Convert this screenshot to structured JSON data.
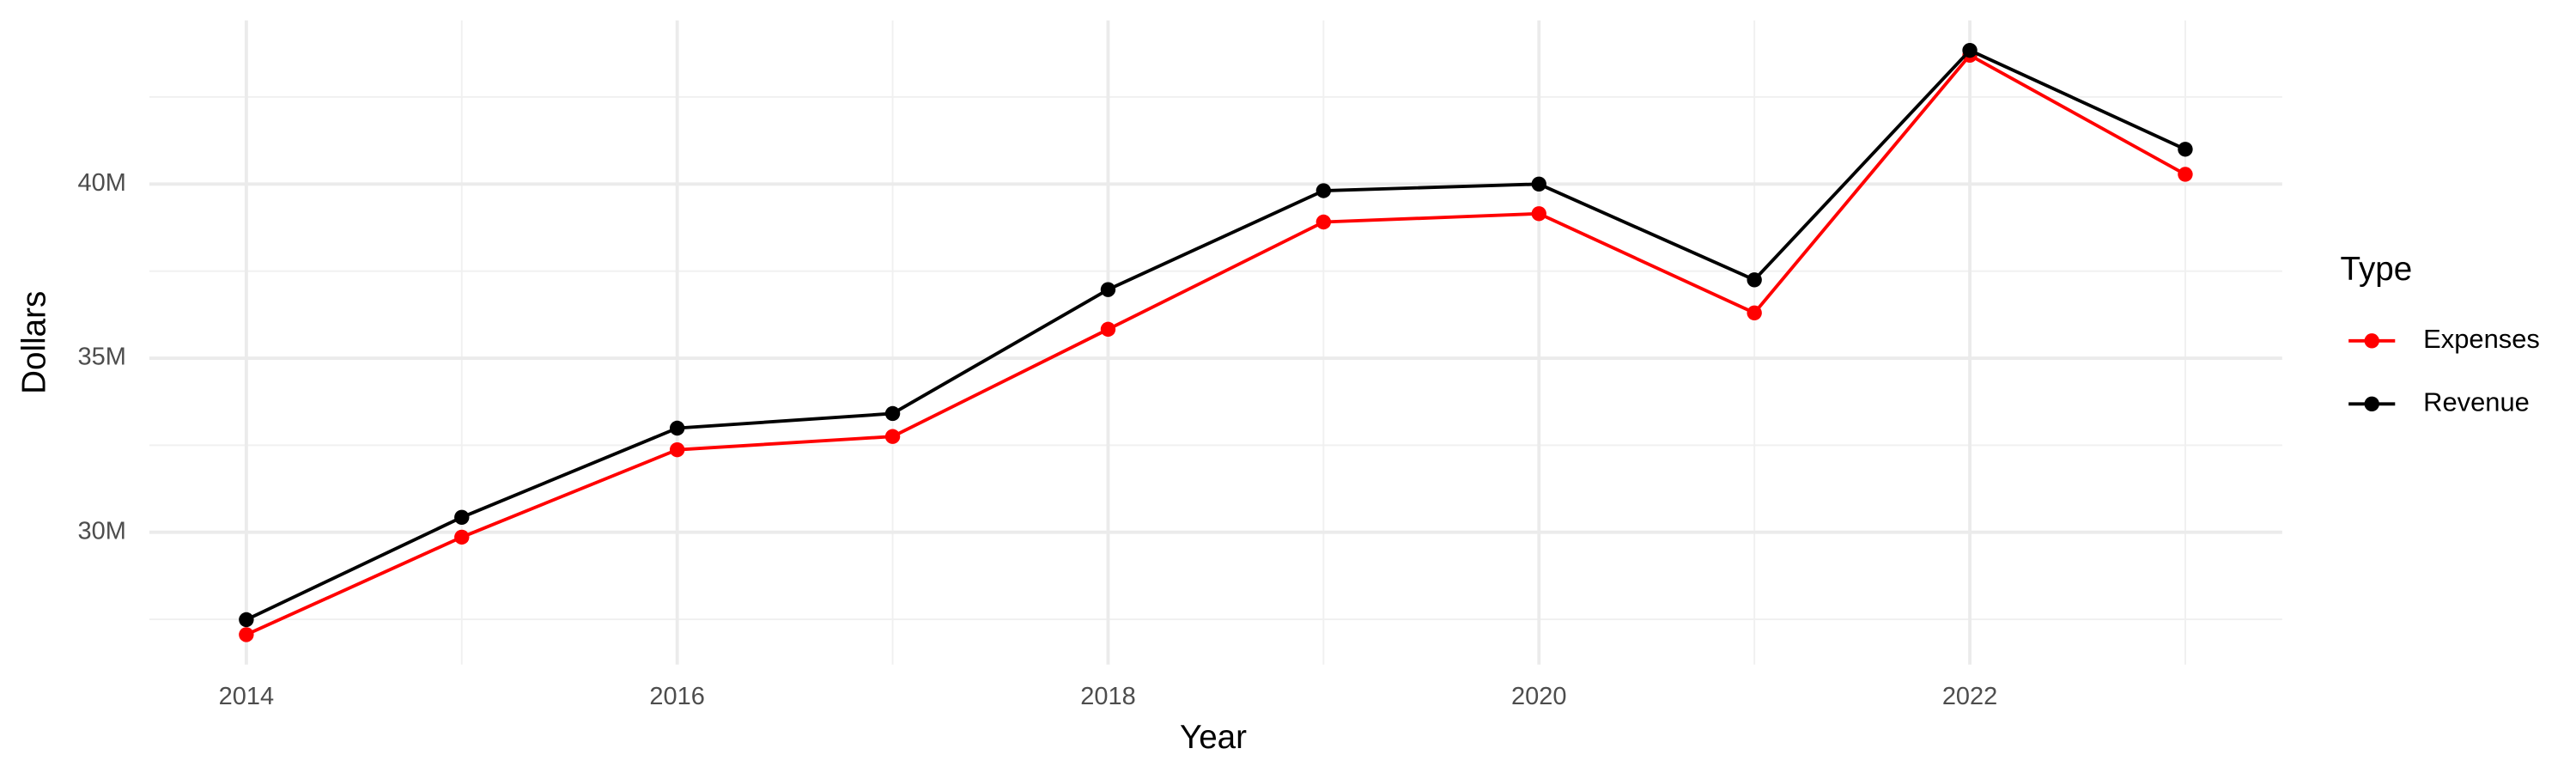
{
  "chart_data": {
    "type": "line",
    "x_label": "Year",
    "y_label": "Dollars",
    "legend_title": "Type",
    "x": [
      2014,
      2015,
      2016,
      2017,
      2018,
      2019,
      2020,
      2021,
      2022,
      2023
    ],
    "series": [
      {
        "name": "Expenses",
        "color": "#ff0000",
        "values": [
          27060000,
          29860000,
          32370000,
          32750000,
          35830000,
          38910000,
          39150000,
          36300000,
          43700000,
          40280000
        ]
      },
      {
        "name": "Revenue",
        "color": "#000000",
        "values": [
          27490000,
          30430000,
          32990000,
          33410000,
          36970000,
          39810000,
          40000000,
          37250000,
          43840000,
          41000000
        ]
      }
    ],
    "xlim": [
      2013.55,
      2023.45
    ],
    "xticks": [
      2014,
      2016,
      2018,
      2020,
      2022
    ],
    "x_minor_grid": [
      2015,
      2017,
      2019,
      2021,
      2023
    ],
    "ylim": [
      26200000,
      44700000
    ],
    "yticks": [
      {
        "value": 30000000,
        "label": "30M"
      },
      {
        "value": 35000000,
        "label": "35M"
      },
      {
        "value": 40000000,
        "label": "40M"
      }
    ],
    "y_minor_grid": [
      27500000,
      32500000,
      37500000,
      42500000
    ],
    "grid": true,
    "legend": "right"
  }
}
